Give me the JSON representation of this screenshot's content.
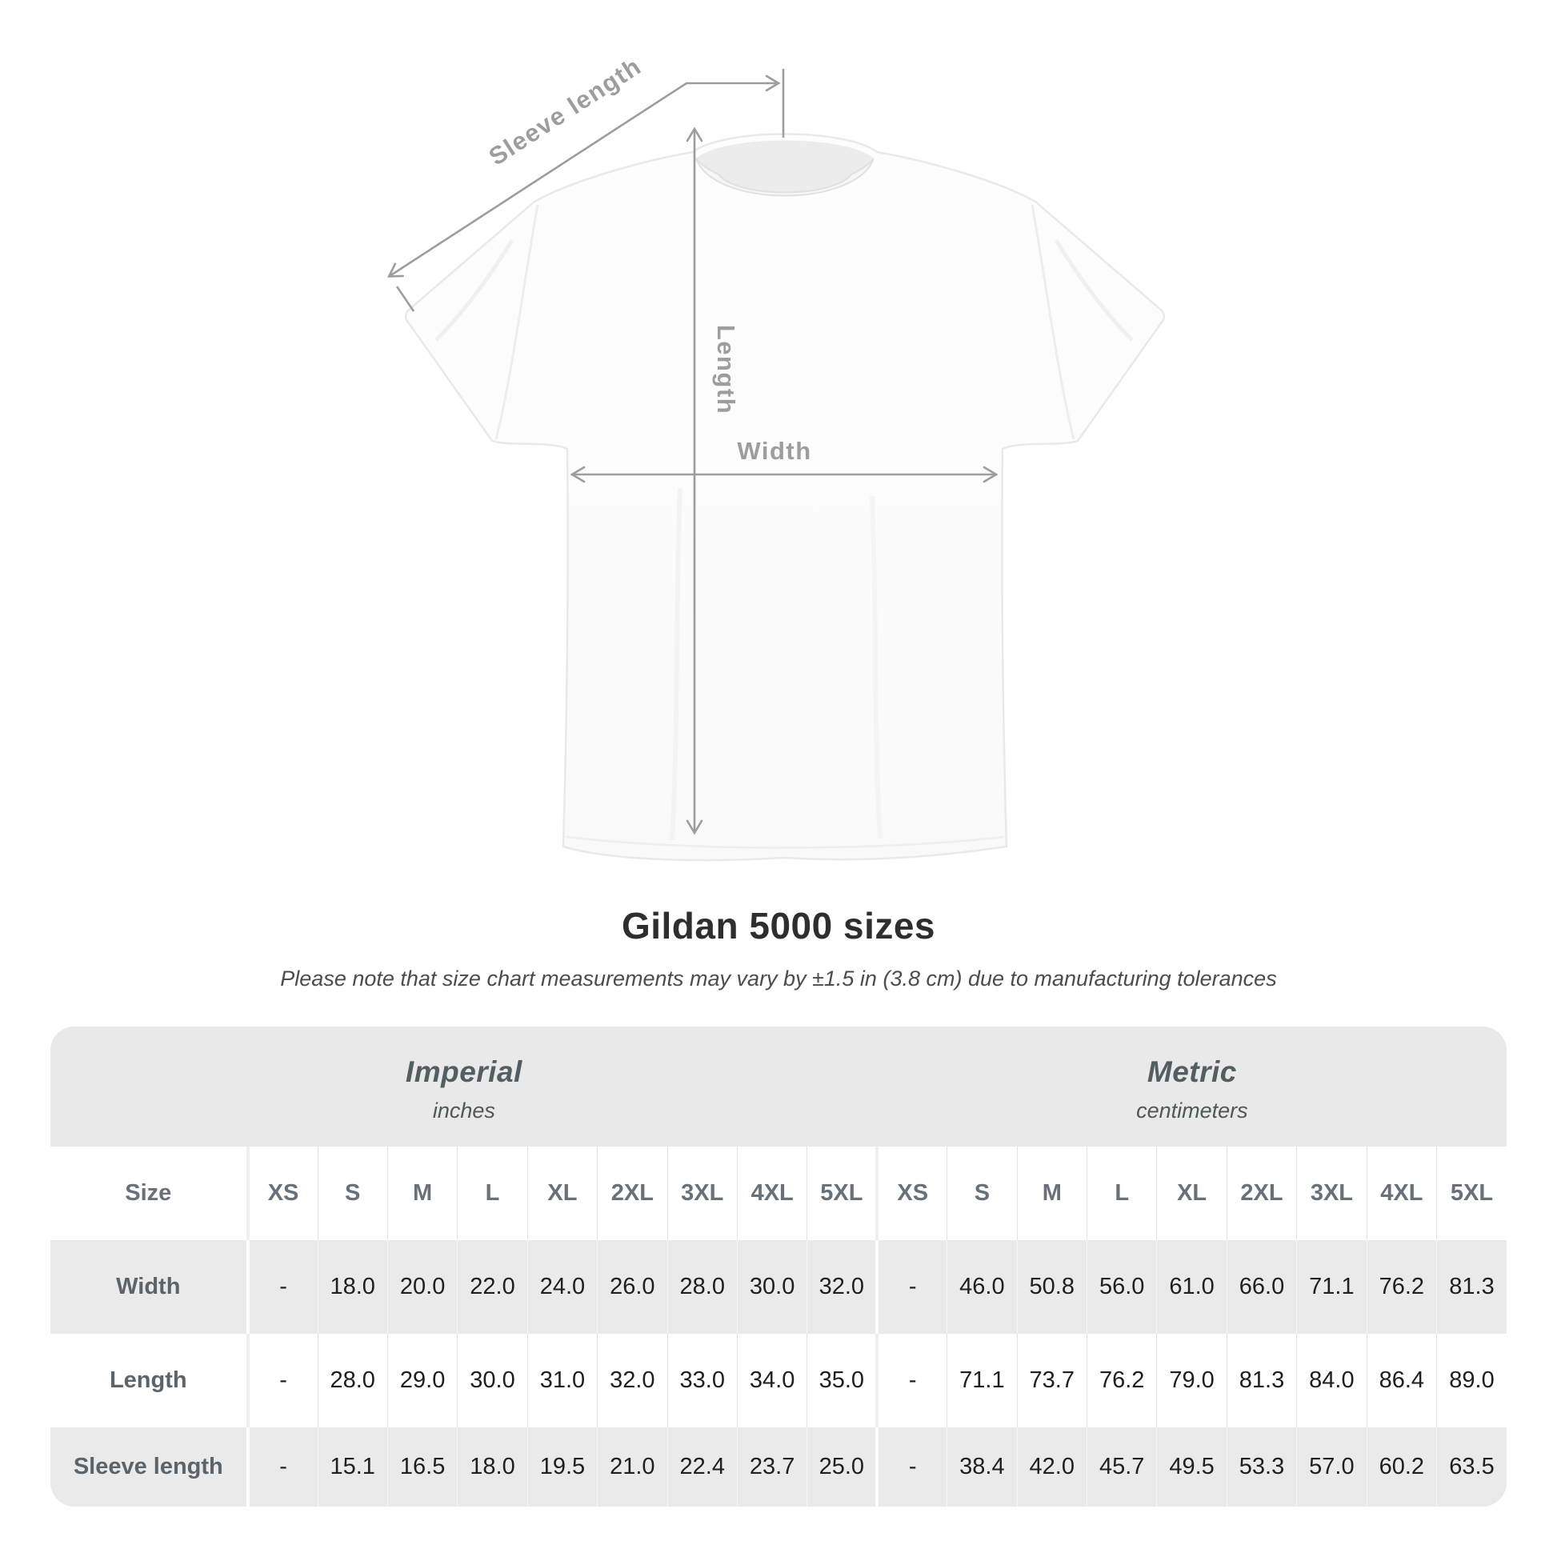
{
  "diagram": {
    "labels": {
      "sleeve_length": "Sleeve length",
      "length": "Length",
      "width": "Width"
    }
  },
  "header": {
    "title": "Gildan 5000 sizes",
    "subtitle": "Please note that size chart measurements may vary by ±1.5 in (3.8 cm) due to manufacturing tolerances"
  },
  "table": {
    "size_column_header": "Size",
    "unit_groups": [
      {
        "name": "Imperial",
        "unit": "inches"
      },
      {
        "name": "Metric",
        "unit": "centimeters"
      }
    ],
    "size_headers": [
      "XS",
      "S",
      "M",
      "L",
      "XL",
      "2XL",
      "3XL",
      "4XL",
      "5XL"
    ],
    "rows": [
      {
        "label": "Width",
        "imperial": [
          "-",
          "18.0",
          "20.0",
          "22.0",
          "24.0",
          "26.0",
          "28.0",
          "30.0",
          "32.0"
        ],
        "metric": [
          "-",
          "46.0",
          "50.8",
          "56.0",
          "61.0",
          "66.0",
          "71.1",
          "76.2",
          "81.3"
        ]
      },
      {
        "label": "Length",
        "imperial": [
          "-",
          "28.0",
          "29.0",
          "30.0",
          "31.0",
          "32.0",
          "33.0",
          "34.0",
          "35.0"
        ],
        "metric": [
          "-",
          "71.1",
          "73.7",
          "76.2",
          "79.0",
          "81.3",
          "84.0",
          "86.4",
          "89.0"
        ]
      },
      {
        "label": "Sleeve length",
        "imperial": [
          "-",
          "15.1",
          "16.5",
          "18.0",
          "19.5",
          "21.0",
          "22.4",
          "23.7",
          "25.0"
        ],
        "metric": [
          "-",
          "38.4",
          "42.0",
          "45.7",
          "49.5",
          "53.3",
          "57.0",
          "60.2",
          "63.5"
        ]
      }
    ]
  },
  "colors": {
    "annotation_gray": "#9d9d9d",
    "band_gray": "#e9e9e9",
    "row_gray": "#eaeaea",
    "header_text": "#68707a",
    "value_text": "#1f1f1f"
  }
}
